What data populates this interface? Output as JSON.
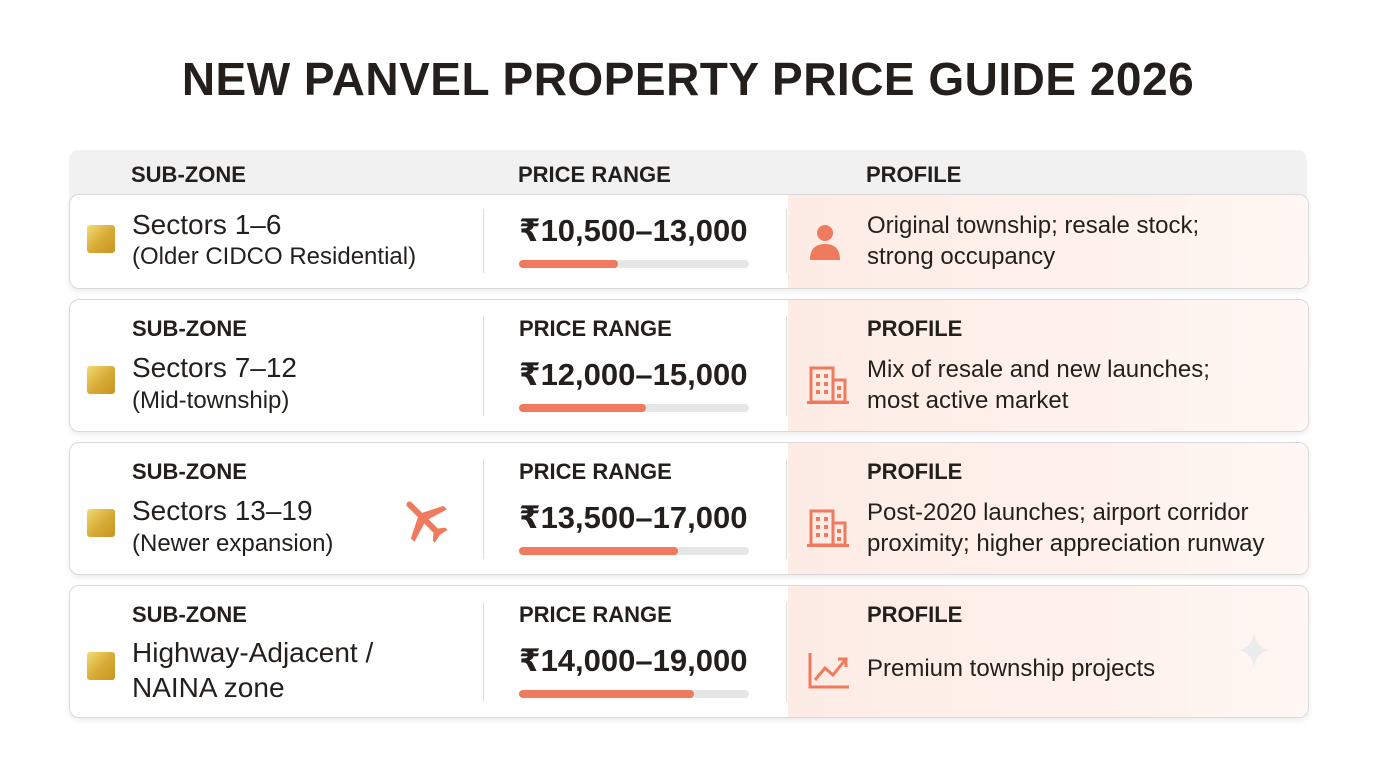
{
  "title": "NEW PANVEL PROPERTY PRICE GUIDE 2026",
  "header": {
    "col1": "SUB-ZONE",
    "col2": "PRICE RANGE",
    "col3": "PROFILE"
  },
  "accent_color": "#ef7a5e",
  "rows": [
    {
      "show_labels": false,
      "zone": "Sectors 1–6",
      "zone_detail": "(Older CIDCO Residential)",
      "price": "₹10,500–13,000",
      "price_level": 0.43,
      "profile_line1": "Original township; resale stock;",
      "profile_line2": "strong occupancy",
      "icon": "person-icon"
    },
    {
      "show_labels": true,
      "label_zone": "SUB-ZONE",
      "label_price": "PRICE RANGE",
      "label_profile": "PROFILE",
      "zone": "Sectors 7–12",
      "zone_detail": "(Mid-township)",
      "price": "₹12,000–15,000",
      "price_level": 0.55,
      "profile_line1": "Mix of resale and new launches;",
      "profile_line2": "most active market",
      "icon": "building-icon"
    },
    {
      "show_labels": true,
      "label_zone": "SUB-ZONE",
      "label_price": "PRICE RANGE",
      "label_profile": "PROFILE",
      "zone": "Sectors 13–19",
      "zone_detail": "(Newer expansion)",
      "price": "₹13,500–17,000",
      "price_level": 0.69,
      "profile_line1": "Post-2020 launches; airport corridor",
      "profile_line2": "proximity; higher appreciation runway",
      "icon": "building-icon",
      "extra_icon": "airplane-icon"
    },
    {
      "show_labels": true,
      "label_zone": "SUB-ZONE",
      "label_price": "PRICE RANGE",
      "label_profile": "PROFILE",
      "zone": "Highway-Adjacent /",
      "zone_detail": "NAINA zone",
      "price": "₹14,000–19,000",
      "price_level": 0.76,
      "profile_line1": "Premium township projects",
      "profile_line2": "",
      "icon": "trend-chart-icon"
    }
  ]
}
